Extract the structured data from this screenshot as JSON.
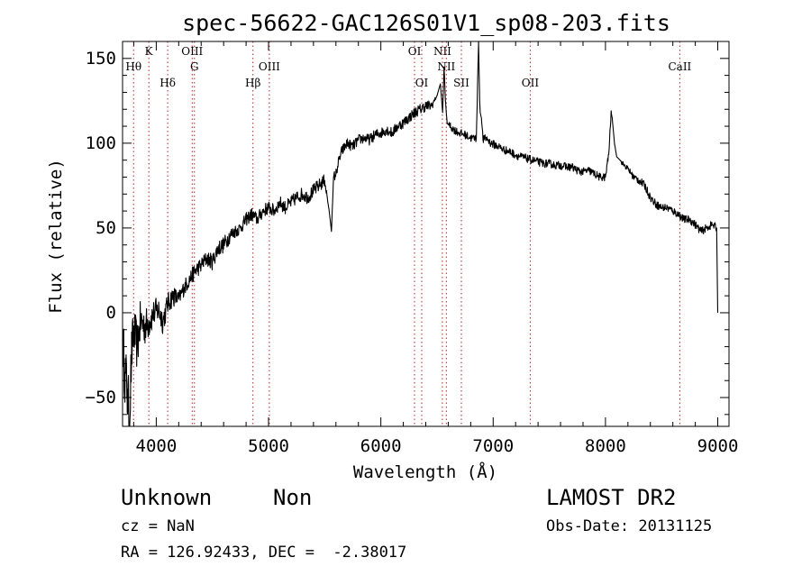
{
  "chart_data": {
    "type": "line",
    "title": "spec-56622-GAC126S01V1_sp08-203.fits",
    "xlabel": "Wavelength (Å)",
    "ylabel": "Flux (relative)",
    "xlim": [
      3700,
      9100
    ],
    "ylim": [
      -67,
      160
    ],
    "xticks": [
      4000,
      5000,
      6000,
      7000,
      8000,
      9000
    ],
    "yticks": [
      -50,
      0,
      50,
      100,
      150
    ],
    "grid": false,
    "line_color": "#000000",
    "marker_color": "#b22222",
    "series": [
      {
        "x": [
          3700,
          3720,
          3740,
          3760,
          3780,
          3800,
          3830,
          3860,
          3900,
          3940,
          3980,
          4020,
          4060,
          4100,
          4150,
          4200,
          4250,
          4300,
          4350,
          4400,
          4450,
          4500,
          4550,
          4600,
          4650,
          4700,
          4750,
          4800,
          4850,
          4900,
          4950,
          5000,
          5050,
          5100,
          5150,
          5200,
          5250,
          5300,
          5350,
          5400,
          5450,
          5500,
          5540,
          5560,
          5570,
          5580,
          5600,
          5620,
          5650,
          5700,
          5750,
          5800,
          5850,
          5900,
          5950,
          6000,
          6050,
          6100,
          6150,
          6200,
          6250,
          6300,
          6350,
          6400,
          6450,
          6500,
          6530,
          6550,
          6563,
          6575,
          6590,
          6620,
          6650,
          6700,
          6750,
          6800,
          6850,
          6870,
          6880,
          6885,
          6895,
          6910,
          6940,
          6980,
          7050,
          7100,
          7150,
          7200,
          7250,
          7300,
          7350,
          7400,
          7450,
          7500,
          7550,
          7600,
          7650,
          7700,
          7750,
          7800,
          7850,
          7900,
          7950,
          8000,
          8030,
          8050,
          8060,
          8080,
          8100,
          8130,
          8150,
          8200,
          8250,
          8300,
          8350,
          8400,
          8450,
          8500,
          8550,
          8600,
          8650,
          8700,
          8750,
          8800,
          8850,
          8900,
          8950,
          8990,
          9000
        ],
        "values": [
          -15,
          -35,
          -45,
          -65,
          -25,
          -10,
          -20,
          -5,
          -8,
          -5,
          0,
          2,
          -5,
          5,
          10,
          8,
          15,
          20,
          25,
          28,
          32,
          30,
          38,
          40,
          45,
          48,
          50,
          55,
          58,
          55,
          60,
          62,
          60,
          65,
          62,
          65,
          68,
          70,
          68,
          72,
          75,
          78,
          60,
          48,
          65,
          80,
          82,
          88,
          95,
          100,
          98,
          102,
          103,
          102,
          105,
          106,
          108,
          106,
          110,
          112,
          115,
          118,
          120,
          122,
          122,
          128,
          135,
          118,
          145,
          125,
          112,
          110,
          108,
          106,
          105,
          103,
          103,
          160,
          125,
          118,
          115,
          102,
          103,
          100,
          98,
          96,
          95,
          93,
          92,
          91,
          90,
          89,
          88,
          88,
          87,
          87,
          86,
          86,
          84,
          83,
          84,
          82,
          80,
          80,
          94,
          118,
          115,
          100,
          92,
          90,
          88,
          85,
          80,
          78,
          75,
          68,
          64,
          62,
          62,
          60,
          58,
          55,
          55,
          52,
          48,
          50,
          52,
          50,
          0
        ],
        "noise": [
          10,
          12,
          12,
          14,
          10,
          9,
          9,
          8,
          7,
          6,
          5,
          5,
          5,
          4,
          4,
          3,
          3,
          3,
          3,
          3,
          3,
          3,
          3,
          3,
          3,
          2.5,
          2.5,
          2.5,
          2.5,
          2.5,
          2.5,
          2.5,
          2.5,
          2.5,
          2.5,
          2.5,
          2.5,
          2.5,
          2.5,
          2.5,
          2.5,
          2.5,
          0,
          0,
          0,
          2,
          2,
          2,
          2,
          2,
          2,
          2,
          2,
          2,
          2,
          2,
          2,
          2,
          2,
          2,
          2,
          2,
          2,
          2,
          2,
          0,
          0,
          0,
          0,
          0,
          0,
          1.5,
          1.5,
          1.5,
          1.5,
          1.5,
          1.5,
          0,
          0,
          0,
          0,
          1.5,
          1.5,
          1.5,
          1.5,
          1.5,
          1.5,
          1.5,
          1.5,
          1.5,
          1.5,
          1.5,
          1.5,
          1.5,
          1.5,
          1.5,
          1.5,
          1.5,
          1.5,
          1.5,
          1.5,
          1.5,
          1.5,
          1.5,
          1.5,
          1,
          0,
          0,
          0,
          0,
          1,
          1,
          1.5,
          1.5,
          1.5,
          1.5,
          1.5,
          1.5,
          1.5,
          1.5,
          1.5,
          1.5,
          1.5,
          1.5,
          1.5,
          1.5,
          1.5,
          1.5,
          0,
          0
        ]
      }
    ],
    "lines": [
      {
        "label": "Hθ",
        "x": 3798,
        "row": "mid"
      },
      {
        "label": "K",
        "x": 3934,
        "row": "top"
      },
      {
        "label": "Hδ",
        "x": 4102,
        "row": "low"
      },
      {
        "label": "OIII",
        "x": 4320,
        "row": "top"
      },
      {
        "label": "G",
        "x": 4340,
        "row": "mid"
      },
      {
        "label": "Hβ",
        "x": 4861,
        "row": "low"
      },
      {
        "label": "OIII",
        "x": 5007,
        "row": "mid"
      },
      {
        "label": "OI",
        "x": 6300,
        "row": "top"
      },
      {
        "label": "OI",
        "x": 6364,
        "row": "low"
      },
      {
        "label": "NII",
        "x": 6548,
        "row": "top"
      },
      {
        "label": "NII",
        "x": 6583,
        "row": "mid"
      },
      {
        "label": "SII",
        "x": 6717,
        "row": "low"
      },
      {
        "label": "OII",
        "x": 7330,
        "row": "low"
      },
      {
        "label": "CaII",
        "x": 8662,
        "row": "mid"
      }
    ]
  },
  "info": {
    "object_class": "Unknown",
    "subclass": "Non",
    "survey": "LAMOST DR2",
    "redshift": "cz = NaN",
    "obs_date": "Obs-Date: 20131125",
    "coords": "RA = 126.92433, DEC =  -2.38017"
  }
}
